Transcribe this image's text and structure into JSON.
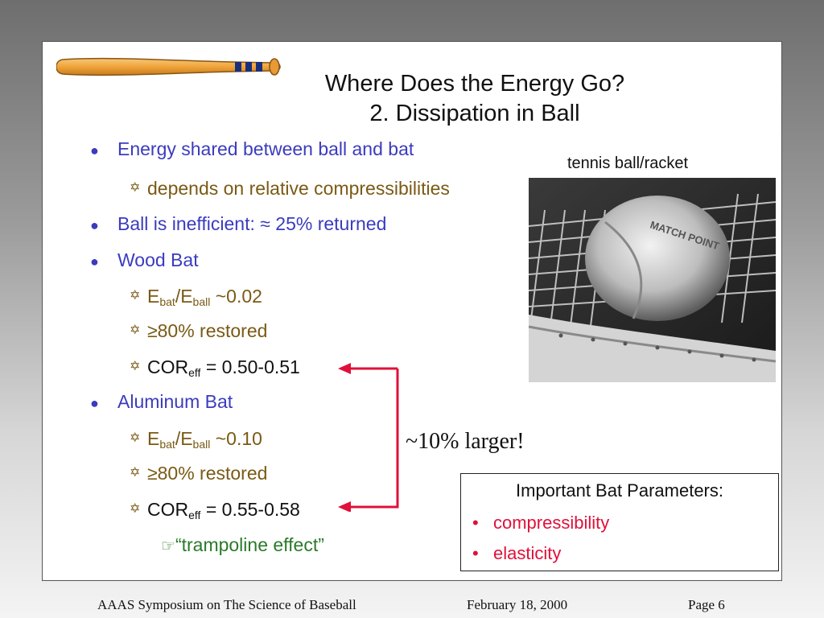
{
  "title": {
    "line1": "Where Does the Energy Go?",
    "line2": "2.  Dissipation in Ball"
  },
  "bullets": {
    "b1": "Energy shared between ball and bat",
    "b1_sub1": "depends on relative compressibilities",
    "b2": "Ball is inefficient:  ≈ 25% returned",
    "b3": "Wood Bat",
    "b3_sub1": {
      "e": "E",
      "s1": "bat",
      "slash": "/E",
      "s2": "ball",
      "rest": " ~0.02"
    },
    "b3_sub2": "≥80% restored",
    "b3_sub3": {
      "main": "COR",
      "sub": "eff",
      "rest": " = 0.50-0.51"
    },
    "b4": "Aluminum Bat",
    "b4_sub1": {
      "e": "E",
      "s1": "bat",
      "slash": "/E",
      "s2": "ball",
      "rest": " ~0.10"
    },
    "b4_sub2": "≥80% restored",
    "b4_sub3": {
      "main": "COR",
      "sub": "eff",
      "rest": " = 0.55-0.58"
    },
    "b4_sub4": "“trampoline effect”"
  },
  "photo": {
    "caption": "tennis ball/racket",
    "ball_text": "MATCH POINT"
  },
  "annotation": "~10% larger!",
  "params_box": {
    "title": "Important Bat Parameters:",
    "items": [
      "compressibility",
      "elasticity"
    ]
  },
  "footer": {
    "left": "AAAS Symposium on The Science of Baseball",
    "center": "February 18, 2000",
    "right": "Page 6"
  },
  "colors": {
    "bullet_main": "#3b3bbf",
    "bullet_sub": "#7a5a14",
    "green": "#2a7a2a",
    "red": "#e0103a",
    "arrow": "#e0103a"
  },
  "icons": {
    "bullet": "filled-circle",
    "sub_bullet": "star-of-david",
    "third_bullet": "pointing-hand"
  }
}
